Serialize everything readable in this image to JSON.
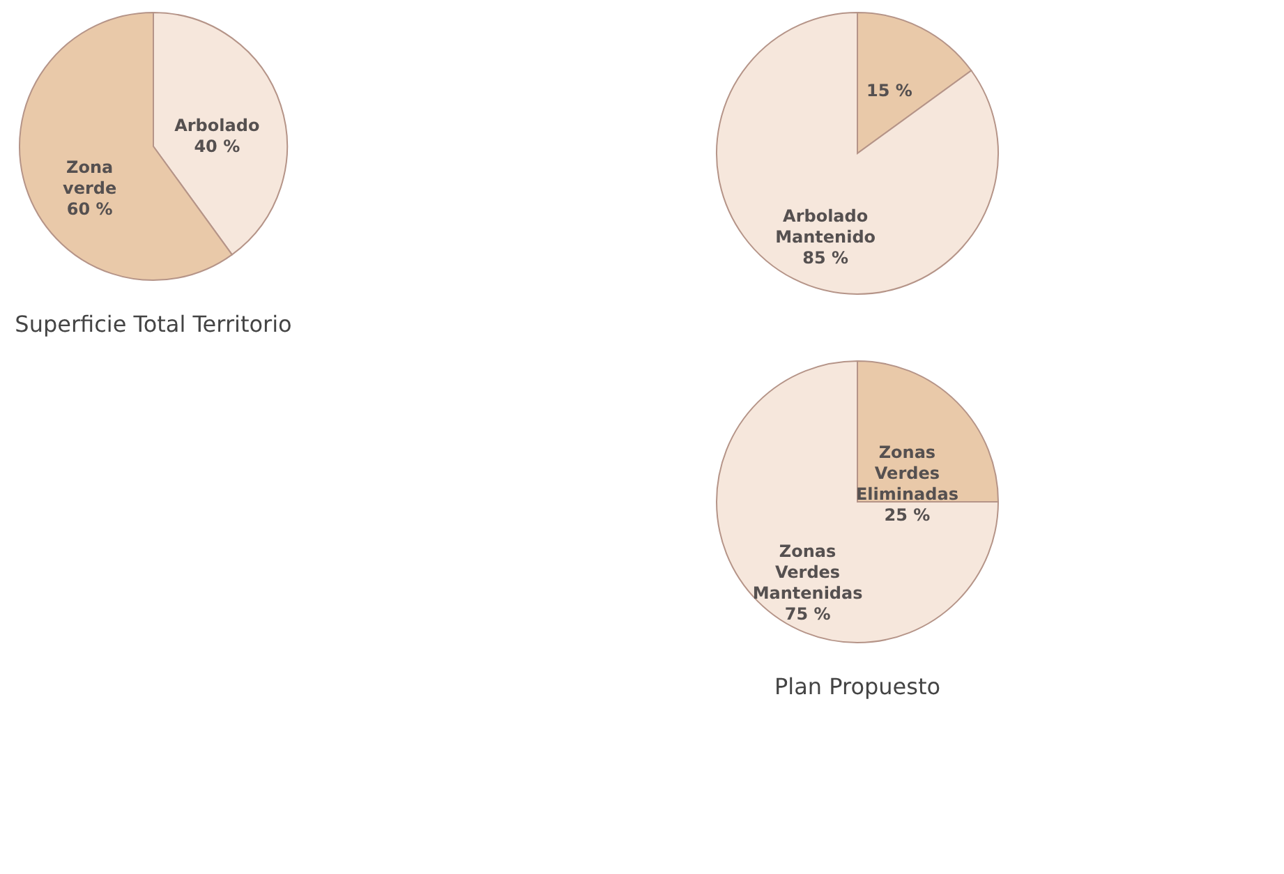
{
  "chart_data": [
    {
      "type": "pie",
      "title": "Superficie Total Territorio",
      "categories": [
        "Arbolado",
        "Zona verde"
      ],
      "values": [
        40,
        60
      ],
      "colors": [
        "#f6e7dc",
        "#e9c9a9"
      ],
      "value_labels": [
        "40 %",
        "60 %"
      ]
    },
    {
      "type": "pie",
      "categories": [
        null,
        "Arbolado Mantenido"
      ],
      "values": [
        15,
        85
      ],
      "colors": [
        "#e9c9a9",
        "#f6e7dc"
      ],
      "value_labels": [
        "15 %",
        "85 %"
      ]
    },
    {
      "type": "pie",
      "title": "Plan Propuesto",
      "categories": [
        "Zonas Verdes Eliminadas",
        "Zonas Verdes Mantenidas"
      ],
      "values": [
        25,
        75
      ],
      "colors": [
        "#e9c9a9",
        "#f6e7dc"
      ],
      "value_labels": [
        "25 %",
        "75 %"
      ]
    }
  ]
}
